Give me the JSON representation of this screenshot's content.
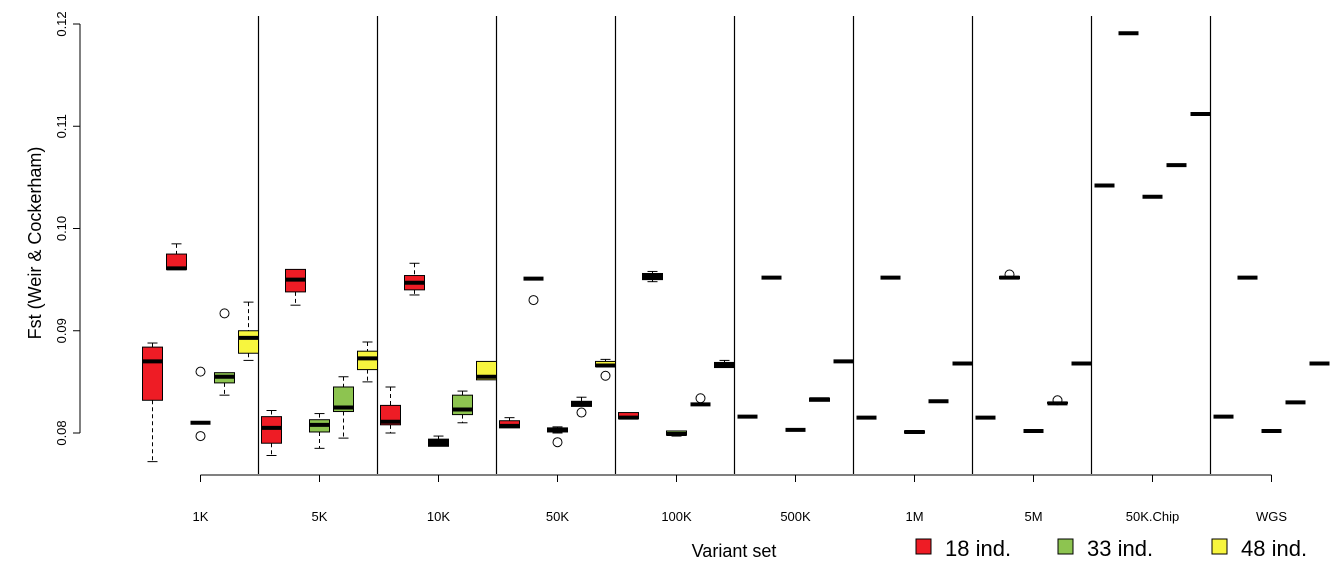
{
  "chart_data": {
    "type": "boxplot",
    "xlabel": "Variant set",
    "ylabel": "Fst (Weir & Cockerham)",
    "ylim": [
      0.074,
      0.12
    ],
    "yticks": [
      "0.08",
      "0.09",
      "0.10",
      "0.11",
      "0.12"
    ],
    "ytick_values": [
      0.08,
      0.09,
      0.1,
      0.11,
      0.12
    ],
    "categories": [
      "1K",
      "5K",
      "10K",
      "50K",
      "100K",
      "500K",
      "1M",
      "5M",
      "50K.Chip",
      "WGS"
    ],
    "group_colors": {
      "red": "#ee1c25",
      "green": "#8dc450",
      "yellow": "#f7f53e"
    },
    "legend": {
      "position": "bottom-right",
      "entries": [
        {
          "label": "18 ind.",
          "color": "#ee1c25"
        },
        {
          "label": "33 ind.",
          "color": "#8dc450"
        },
        {
          "label": "48 ind.",
          "color": "#f7f53e"
        }
      ]
    },
    "panels": [
      {
        "category": "1K",
        "boxes": [
          {
            "group": "red",
            "min": 0.0772,
            "q1": 0.0832,
            "median": 0.087,
            "q3": 0.0884,
            "max": 0.0888,
            "outliers": []
          },
          {
            "group": "red",
            "min": 0.096,
            "q1": 0.096,
            "median": 0.0961,
            "q3": 0.0975,
            "max": 0.0985,
            "outliers": []
          },
          {
            "group": "black",
            "min": 0.081,
            "q1": 0.081,
            "median": 0.081,
            "q3": 0.081,
            "max": 0.081,
            "outliers": [
              0.086,
              0.0797
            ]
          },
          {
            "group": "green",
            "min": 0.0837,
            "q1": 0.0849,
            "median": 0.0855,
            "q3": 0.0859,
            "max": 0.0859,
            "outliers": [
              0.0917
            ]
          },
          {
            "group": "yellow",
            "min": 0.0871,
            "q1": 0.0878,
            "median": 0.0893,
            "q3": 0.09,
            "max": 0.0928,
            "outliers": []
          }
        ]
      },
      {
        "category": "5K",
        "boxes": [
          {
            "group": "red",
            "min": 0.0778,
            "q1": 0.079,
            "median": 0.0805,
            "q3": 0.0816,
            "max": 0.0822,
            "outliers": []
          },
          {
            "group": "red",
            "min": 0.0925,
            "q1": 0.0938,
            "median": 0.095,
            "q3": 0.096,
            "max": 0.096,
            "outliers": []
          },
          {
            "group": "green",
            "min": 0.0785,
            "q1": 0.0801,
            "median": 0.0808,
            "q3": 0.0813,
            "max": 0.0819,
            "outliers": []
          },
          {
            "group": "green",
            "min": 0.0795,
            "q1": 0.0821,
            "median": 0.0825,
            "q3": 0.0845,
            "max": 0.0855,
            "outliers": []
          },
          {
            "group": "yellow",
            "min": 0.085,
            "q1": 0.0862,
            "median": 0.0873,
            "q3": 0.088,
            "max": 0.0889,
            "outliers": []
          }
        ]
      },
      {
        "category": "10K",
        "boxes": [
          {
            "group": "red",
            "min": 0.08,
            "q1": 0.0808,
            "median": 0.0811,
            "q3": 0.0827,
            "max": 0.0845,
            "outliers": []
          },
          {
            "group": "red",
            "min": 0.0935,
            "q1": 0.094,
            "median": 0.0947,
            "q3": 0.0954,
            "max": 0.0966,
            "outliers": []
          },
          {
            "group": "black",
            "min": 0.0787,
            "q1": 0.0787,
            "median": 0.079,
            "q3": 0.0794,
            "max": 0.0797,
            "outliers": []
          },
          {
            "group": "green",
            "min": 0.081,
            "q1": 0.0818,
            "median": 0.0823,
            "q3": 0.0837,
            "max": 0.0841,
            "outliers": []
          },
          {
            "group": "yellow",
            "min": 0.0852,
            "q1": 0.0852,
            "median": 0.0855,
            "q3": 0.087,
            "max": 0.087,
            "outliers": []
          }
        ]
      },
      {
        "category": "50K",
        "boxes": [
          {
            "group": "red",
            "min": 0.0805,
            "q1": 0.0805,
            "median": 0.0807,
            "q3": 0.0812,
            "max": 0.0815,
            "outliers": []
          },
          {
            "group": "black",
            "min": 0.0951,
            "q1": 0.0951,
            "median": 0.0951,
            "q3": 0.0951,
            "max": 0.0951,
            "outliers": [
              0.093
            ]
          },
          {
            "group": "green",
            "min": 0.08,
            "q1": 0.0801,
            "median": 0.0803,
            "q3": 0.0805,
            "max": 0.0806,
            "outliers": [
              0.0791
            ]
          },
          {
            "group": "black",
            "min": 0.0826,
            "q1": 0.0826,
            "median": 0.0829,
            "q3": 0.0831,
            "max": 0.0835,
            "outliers": [
              0.082
            ]
          },
          {
            "group": "yellow",
            "min": 0.0865,
            "q1": 0.0865,
            "median": 0.0866,
            "q3": 0.087,
            "max": 0.0872,
            "outliers": [
              0.0856
            ]
          }
        ]
      },
      {
        "category": "100K",
        "boxes": [
          {
            "group": "red",
            "min": 0.0814,
            "q1": 0.0814,
            "median": 0.0815,
            "q3": 0.082,
            "max": 0.082,
            "outliers": []
          },
          {
            "group": "black",
            "min": 0.0948,
            "q1": 0.095,
            "median": 0.0953,
            "q3": 0.0956,
            "max": 0.0958,
            "outliers": []
          },
          {
            "group": "green",
            "min": 0.0797,
            "q1": 0.0798,
            "median": 0.0799,
            "q3": 0.0802,
            "max": 0.0802,
            "outliers": []
          },
          {
            "group": "black",
            "min": 0.0828,
            "q1": 0.0828,
            "median": 0.0828,
            "q3": 0.0828,
            "max": 0.0828,
            "outliers": [
              0.0834
            ]
          },
          {
            "group": "black",
            "min": 0.0864,
            "q1": 0.0864,
            "median": 0.0867,
            "q3": 0.0869,
            "max": 0.0871,
            "outliers": []
          }
        ]
      },
      {
        "category": "500K",
        "boxes": [
          {
            "group": "black",
            "min": 0.0816,
            "q1": 0.0816,
            "median": 0.0816,
            "q3": 0.0816,
            "max": 0.0816,
            "outliers": []
          },
          {
            "group": "black",
            "min": 0.0952,
            "q1": 0.0952,
            "median": 0.0952,
            "q3": 0.0952,
            "max": 0.0952,
            "outliers": []
          },
          {
            "group": "black",
            "min": 0.0803,
            "q1": 0.0803,
            "median": 0.0803,
            "q3": 0.0803,
            "max": 0.0803,
            "outliers": []
          },
          {
            "group": "black",
            "min": 0.0831,
            "q1": 0.0831,
            "median": 0.0833,
            "q3": 0.0834,
            "max": 0.0834,
            "outliers": []
          },
          {
            "group": "black",
            "min": 0.087,
            "q1": 0.087,
            "median": 0.087,
            "q3": 0.087,
            "max": 0.087,
            "outliers": []
          }
        ]
      },
      {
        "category": "1M",
        "boxes": [
          {
            "group": "black",
            "min": 0.0815,
            "q1": 0.0815,
            "median": 0.0815,
            "q3": 0.0815,
            "max": 0.0815,
            "outliers": []
          },
          {
            "group": "black",
            "min": 0.0952,
            "q1": 0.0952,
            "median": 0.0952,
            "q3": 0.0952,
            "max": 0.0952,
            "outliers": []
          },
          {
            "group": "black",
            "min": 0.08,
            "q1": 0.08,
            "median": 0.0801,
            "q3": 0.0802,
            "max": 0.0802,
            "outliers": []
          },
          {
            "group": "black",
            "min": 0.0831,
            "q1": 0.0831,
            "median": 0.0831,
            "q3": 0.0831,
            "max": 0.0831,
            "outliers": []
          },
          {
            "group": "black",
            "min": 0.0868,
            "q1": 0.0868,
            "median": 0.0868,
            "q3": 0.0868,
            "max": 0.0868,
            "outliers": []
          }
        ]
      },
      {
        "category": "5M",
        "boxes": [
          {
            "group": "black",
            "min": 0.0815,
            "q1": 0.0815,
            "median": 0.0815,
            "q3": 0.0815,
            "max": 0.0815,
            "outliers": []
          },
          {
            "group": "black",
            "min": 0.0951,
            "q1": 0.0951,
            "median": 0.0952,
            "q3": 0.0953,
            "max": 0.0953,
            "outliers": [
              0.0955
            ]
          },
          {
            "group": "black",
            "min": 0.0802,
            "q1": 0.0802,
            "median": 0.0802,
            "q3": 0.0802,
            "max": 0.0802,
            "outliers": []
          },
          {
            "group": "black",
            "min": 0.0829,
            "q1": 0.0829,
            "median": 0.0829,
            "q3": 0.083,
            "max": 0.083,
            "outliers": [
              0.0832
            ]
          },
          {
            "group": "black",
            "min": 0.0868,
            "q1": 0.0868,
            "median": 0.0868,
            "q3": 0.0868,
            "max": 0.0868,
            "outliers": []
          }
        ]
      },
      {
        "category": "50K.Chip",
        "boxes": [
          {
            "group": "black",
            "min": 0.1042,
            "q1": 0.1042,
            "median": 0.1042,
            "q3": 0.1042,
            "max": 0.1042,
            "outliers": []
          },
          {
            "group": "black",
            "min": 0.1191,
            "q1": 0.1191,
            "median": 0.1191,
            "q3": 0.1191,
            "max": 0.1191,
            "outliers": []
          },
          {
            "group": "black",
            "min": 0.1031,
            "q1": 0.1031,
            "median": 0.1031,
            "q3": 0.1031,
            "max": 0.1031,
            "outliers": []
          },
          {
            "group": "black",
            "min": 0.1062,
            "q1": 0.1062,
            "median": 0.1062,
            "q3": 0.1062,
            "max": 0.1062,
            "outliers": []
          },
          {
            "group": "black",
            "min": 0.1112,
            "q1": 0.1112,
            "median": 0.1112,
            "q3": 0.1112,
            "max": 0.1112,
            "outliers": []
          }
        ]
      },
      {
        "category": "WGS",
        "boxes": [
          {
            "group": "black",
            "min": 0.0816,
            "q1": 0.0816,
            "median": 0.0816,
            "q3": 0.0816,
            "max": 0.0816,
            "outliers": []
          },
          {
            "group": "black",
            "min": 0.0952,
            "q1": 0.0952,
            "median": 0.0952,
            "q3": 0.0952,
            "max": 0.0952,
            "outliers": []
          },
          {
            "group": "black",
            "min": 0.0802,
            "q1": 0.0802,
            "median": 0.0802,
            "q3": 0.0802,
            "max": 0.0802,
            "outliers": []
          },
          {
            "group": "black",
            "min": 0.083,
            "q1": 0.083,
            "median": 0.083,
            "q3": 0.083,
            "max": 0.083,
            "outliers": []
          },
          {
            "group": "black",
            "min": 0.0868,
            "q1": 0.0868,
            "median": 0.0868,
            "q3": 0.0868,
            "max": 0.0868,
            "outliers": []
          }
        ]
      }
    ]
  }
}
